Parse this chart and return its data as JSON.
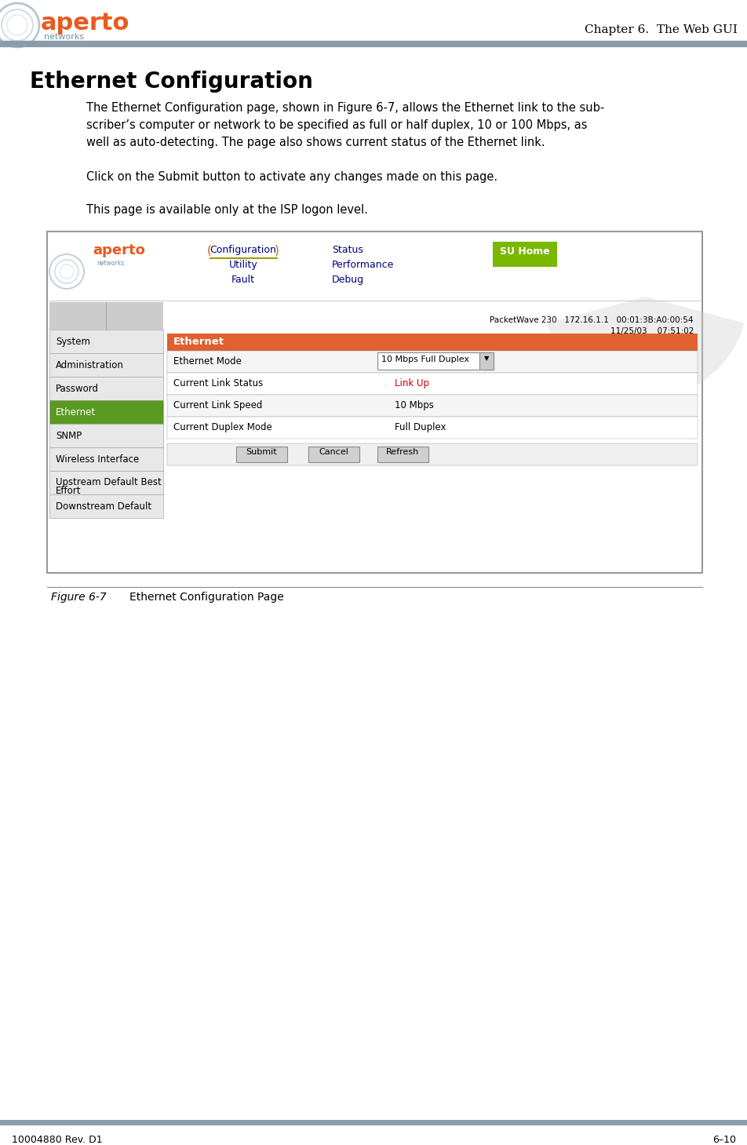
{
  "page_title": "Chapter 6.  The Web GUI",
  "section_title": "Ethernet Configuration",
  "body_text_1a": "The Ethernet Configuration page, shown in Figure 6-7, allows the Ethernet link to the sub-",
  "body_text_1b": "scriber’s computer or network to be specified as full or half duplex, 10 or 100 Mbps, as",
  "body_text_1c": "well as auto-detecting. The page also shows current status of the Ethernet link.",
  "body_text_2": "Click on the Submit button to activate any changes made on this page.",
  "body_text_3": "This page is available only at the ISP logon level.",
  "figure_caption_label": "Figure 6-7",
  "figure_caption_text": "Ethernet Configuration Page",
  "footer_left": "10004880 Rev. D1",
  "footer_right": "6–10",
  "header_line_color": "#8a9baa",
  "footer_line_color": "#8a9baa",
  "bg_color": "#ffffff",
  "text_color": "#000000",
  "title_color": "#000000",
  "aperto_orange": "#e85a1e",
  "aperto_gray": "#6b8fa8",
  "nav_link_color": "#000080",
  "su_home_bg": "#7ab800",
  "su_home_text": "#ffffff",
  "section_header_bg": "#e06030",
  "browser_border": "#999999",
  "sidebar_item_bg": "#e8e8e8",
  "sidebar_selected_bg": "#5a9a20",
  "submit_btn_bg": "#d0d0d0",
  "packetwave_text": "PacketWave 230   172.16.1.1   00:01:3B:A0:00:54",
  "date_text": "11/25/03    07:51:02",
  "nav_items": [
    "System",
    "Administration",
    "Password",
    "Ethernet",
    "SNMP",
    "Wireless Interface",
    "Upstream Default Best\nEffort",
    "Downstream Default"
  ],
  "ethernet_mode_label": "Ethernet Mode",
  "ethernet_mode_value": "10 Mbps Full Duplex",
  "current_link_status_label": "Current Link Status",
  "current_link_status_value": "Link Up",
  "current_link_speed_label": "Current Link Speed",
  "current_link_speed_value": "10 Mbps",
  "current_duplex_label": "Current Duplex Mode",
  "current_duplex_value": "Full Duplex",
  "nav_col1": [
    "Configuration",
    "Utility",
    "Fault"
  ],
  "nav_col2": [
    "Status",
    "Performance",
    "Debug"
  ]
}
